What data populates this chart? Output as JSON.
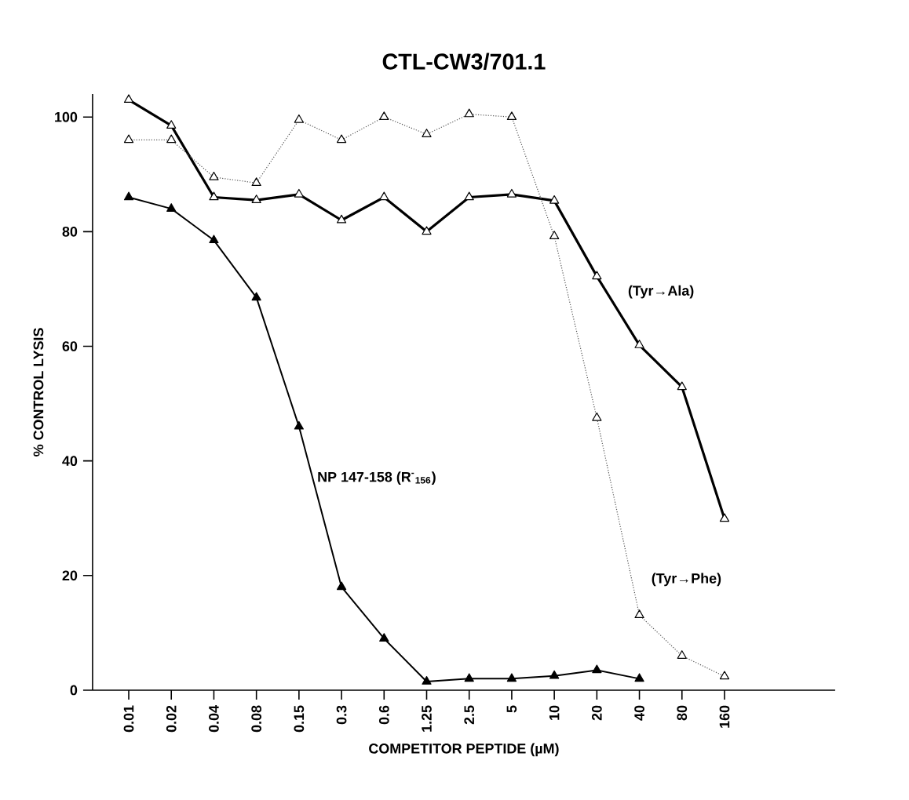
{
  "chart_data": {
    "type": "line",
    "title": "CTL-CW3/701.1",
    "xlabel": "COMPETITOR PEPTIDE  (µM)",
    "ylabel": "% CONTROL LYSIS",
    "categories": [
      "0.01",
      "0.02",
      "0.04",
      "0.08",
      "0.15",
      "0.3",
      "0.6",
      "1.25",
      "2.5",
      "5",
      "10",
      "20",
      "40",
      "80",
      "160"
    ],
    "ylim": [
      0,
      104
    ],
    "yticks": [
      0,
      20,
      40,
      60,
      80,
      100
    ],
    "marker": "triangle",
    "grid": false,
    "series": [
      {
        "name": "(Tyr→Ala)",
        "color": "#000000",
        "line_style": "solid",
        "values": [
          103,
          98.5,
          86,
          85.5,
          86.5,
          82,
          86,
          80,
          86,
          86.5,
          85.4,
          72.2,
          60.2,
          52.9,
          29.9
        ]
      },
      {
        "name": "(Tyr→Phe)",
        "color": "#555555",
        "line_style": "dotted",
        "values": [
          96,
          96,
          89.5,
          88.5,
          99.5,
          96,
          100,
          97,
          100.5,
          100,
          79.2,
          47.5,
          13.1,
          6,
          2.4
        ]
      },
      {
        "name": "NP 147-158 (R$^{-}$$_{156}$)",
        "color": "#000000",
        "line_style": "solid",
        "values": [
          86,
          84,
          78.5,
          68.5,
          46,
          18,
          9,
          1.5,
          2,
          2,
          2.5,
          3.5,
          2,
          null,
          null
        ]
      }
    ]
  }
}
